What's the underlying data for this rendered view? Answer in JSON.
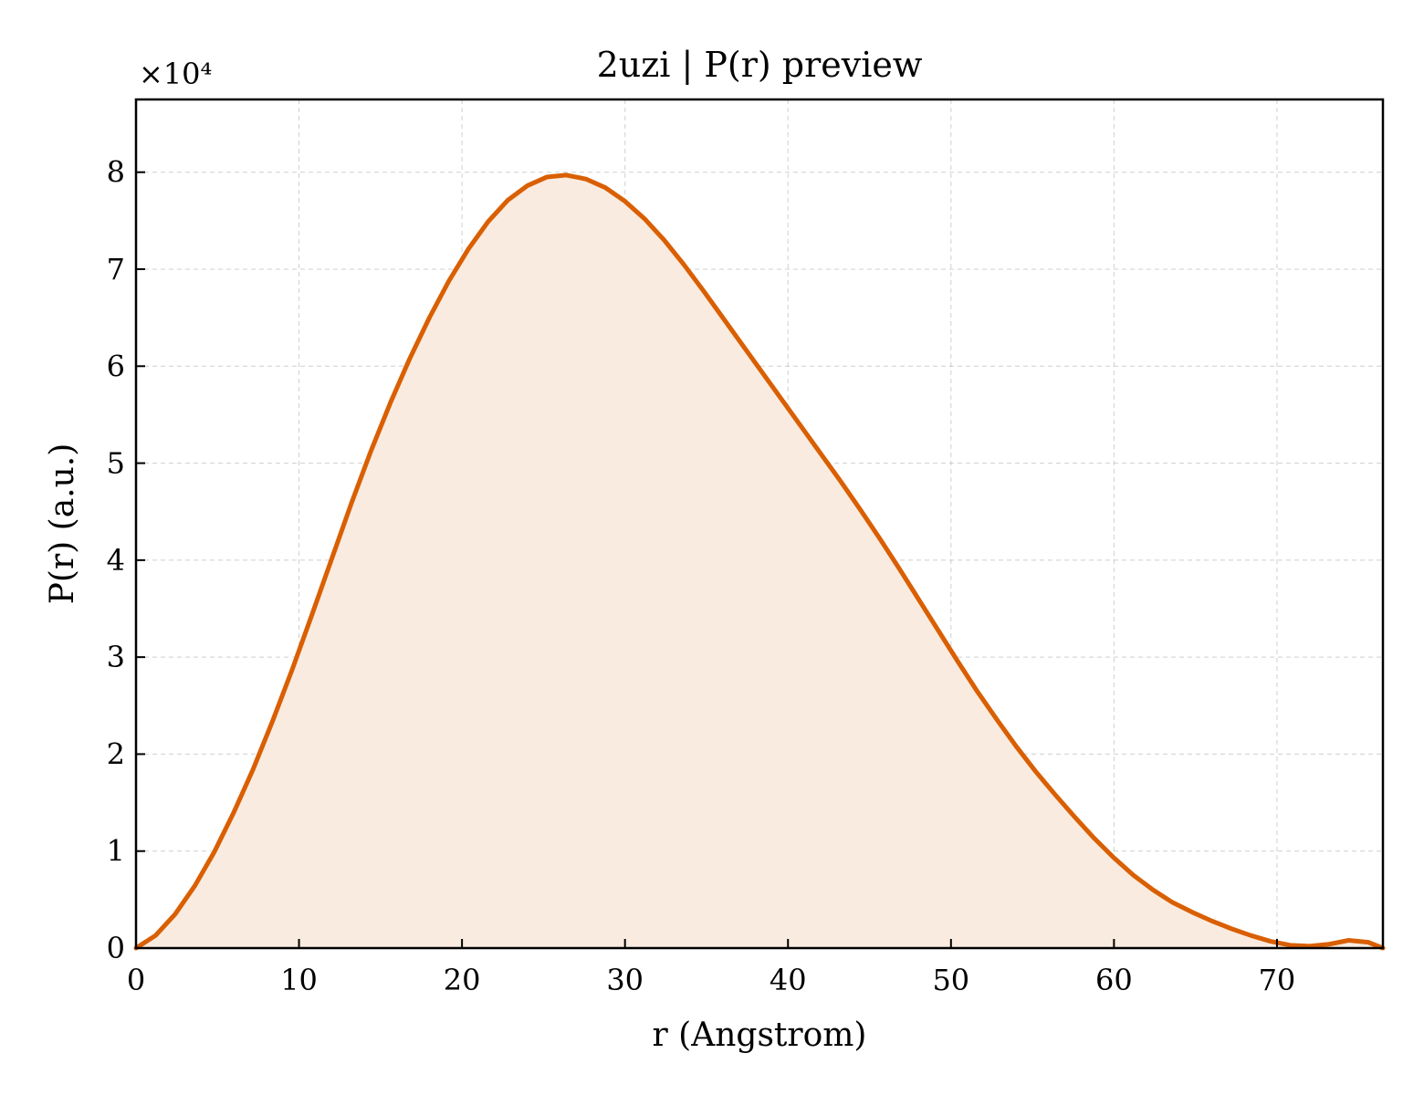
{
  "chart_data": {
    "type": "area",
    "title": "2uzi | P(r) preview",
    "xlabel": "r (Angstrom)",
    "ylabel": "P(r) (a.u.)",
    "y_multiplier_label": "×10⁴",
    "xlim": [
      0,
      76.5
    ],
    "ylim": [
      0,
      8.75
    ],
    "x_ticks": [
      0,
      10,
      20,
      30,
      40,
      50,
      60,
      70
    ],
    "y_ticks": [
      0,
      1,
      2,
      3,
      4,
      5,
      6,
      7,
      8
    ],
    "grid": true,
    "line_color": "#d95f02",
    "fill_color": "#f9ebe0",
    "series": [
      {
        "x": [
          0,
          1.2,
          2.4,
          3.6,
          4.8,
          6.0,
          7.2,
          8.4,
          9.6,
          10.8,
          12.0,
          13.2,
          14.4,
          15.6,
          16.8,
          18.0,
          19.2,
          20.4,
          21.6,
          22.8,
          24.0,
          25.2,
          26.4,
          27.6,
          28.8,
          30.0,
          31.2,
          32.4,
          33.6,
          34.8,
          36.0,
          37.2,
          38.4,
          39.6,
          40.8,
          42.0,
          43.2,
          44.4,
          45.6,
          46.8,
          48.0,
          49.2,
          50.4,
          51.6,
          52.8,
          54.0,
          55.2,
          56.4,
          57.6,
          58.8,
          60.0,
          61.2,
          62.4,
          63.6,
          64.8,
          66.0,
          67.2,
          68.4,
          69.6,
          70.8,
          72.0,
          73.2,
          74.4,
          75.6,
          76.5
        ],
        "y": [
          0,
          0.13,
          0.35,
          0.64,
          0.99,
          1.4,
          1.85,
          2.35,
          2.88,
          3.44,
          4.01,
          4.58,
          5.12,
          5.62,
          6.08,
          6.5,
          6.88,
          7.21,
          7.49,
          7.71,
          7.86,
          7.95,
          7.97,
          7.93,
          7.84,
          7.7,
          7.52,
          7.3,
          7.05,
          6.78,
          6.5,
          6.22,
          5.94,
          5.66,
          5.38,
          5.1,
          4.82,
          4.53,
          4.23,
          3.92,
          3.6,
          3.28,
          2.96,
          2.65,
          2.36,
          2.08,
          1.82,
          1.58,
          1.35,
          1.13,
          0.93,
          0.75,
          0.6,
          0.47,
          0.37,
          0.28,
          0.2,
          0.13,
          0.07,
          0.03,
          0.02,
          0.04,
          0.08,
          0.06,
          0.0
        ]
      }
    ]
  }
}
